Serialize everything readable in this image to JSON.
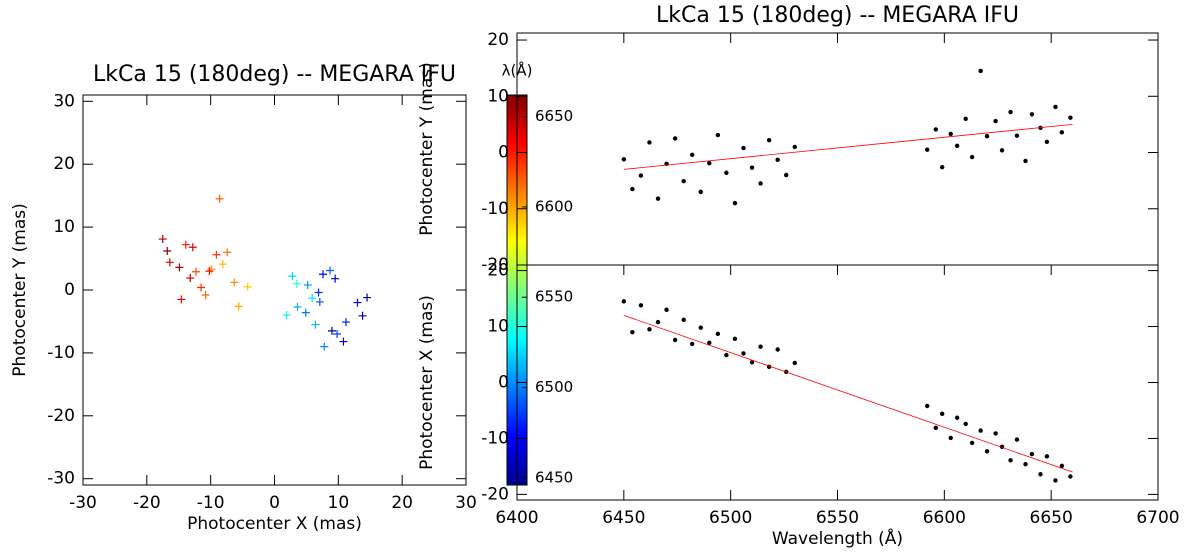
{
  "chart_data": [
    {
      "type": "scatter",
      "title": "LkCa 15 (180deg) -- MEGARA IFU",
      "xlabel": "Photocenter X (mas)",
      "ylabel": "Photocenter Y (mas)",
      "xlim": [
        -30,
        30
      ],
      "ylim": [
        -31,
        31
      ],
      "xticks": [
        -30,
        -20,
        -10,
        0,
        10,
        20,
        30
      ],
      "yticks": [
        -30,
        -20,
        -10,
        0,
        10,
        20,
        30
      ],
      "marker": "plus",
      "colormap": "jet",
      "colorbar": {
        "label": "λ(Å)",
        "lim": [
          6446,
          6662
        ],
        "ticks": [
          6450,
          6500,
          6550,
          6600,
          6650
        ]
      },
      "x": [
        14.5,
        9.0,
        13.8,
        9.5,
        10.8,
        13.0,
        7.6,
        11.2,
        6.9,
        9.8,
        7.1,
        8.7,
        4.9,
        7.8,
        5.2,
        3.6,
        6.4,
        2.8,
        5.9,
        1.9,
        3.5,
        -4.2,
        -8.1,
        -5.6,
        -9.9,
        -6.3,
        -7.4,
        -10.8,
        -8.6,
        -12.3,
        -9.1,
        -11.5,
        -13.9,
        -10.2,
        -14.6,
        -12.8,
        -16.4,
        -13.2,
        -17.5,
        -14.9,
        -16.8
      ],
      "values": [
        -1.2,
        -6.5,
        -4.1,
        1.8,
        -8.2,
        -2.0,
        2.5,
        -5.1,
        -0.4,
        -7.0,
        -1.9,
        3.1,
        -3.6,
        -9.0,
        0.8,
        -2.7,
        -5.5,
        2.2,
        -1.3,
        -4.0,
        1.0,
        0.5,
        4.1,
        -2.6,
        3.3,
        1.2,
        6.0,
        -0.8,
        14.5,
        2.9,
        5.6,
        0.4,
        7.2,
        3.0,
        -1.5,
        6.8,
        4.4,
        1.9,
        8.1,
        3.6,
        6.2
      ],
      "wavelength": [
        6450,
        6454,
        6458,
        6462,
        6466,
        6470,
        6474,
        6478,
        6482,
        6486,
        6490,
        6494,
        6498,
        6502,
        6506,
        6510,
        6514,
        6518,
        6522,
        6526,
        6530,
        6592,
        6596,
        6599,
        6603,
        6606,
        6610,
        6613,
        6617,
        6620,
        6624,
        6627,
        6631,
        6634,
        6638,
        6641,
        6645,
        6648,
        6652,
        6655,
        6659
      ]
    },
    {
      "type": "scatter",
      "title": "LkCa 15 (180deg) -- MEGARA IFU",
      "ylabel": "Photocenter Y (mas)",
      "xlim": [
        6400,
        6700
      ],
      "ylim": [
        -20,
        21.25
      ],
      "yticks": [
        -20,
        -10,
        0,
        10,
        20
      ],
      "series": [
        {
          "marker": "dot",
          "color": "#000000",
          "x": [
            6450,
            6454,
            6458,
            6462,
            6466,
            6470,
            6474,
            6478,
            6482,
            6486,
            6490,
            6494,
            6498,
            6502,
            6506,
            6510,
            6514,
            6518,
            6522,
            6526,
            6530,
            6592,
            6596,
            6599,
            6603,
            6606,
            6610,
            6613,
            6617,
            6620,
            6624,
            6627,
            6631,
            6634,
            6638,
            6641,
            6645,
            6648,
            6652,
            6655,
            6659
          ],
          "values": [
            -1.2,
            -6.5,
            -4.1,
            1.8,
            -8.2,
            -2.0,
            2.5,
            -5.1,
            -0.4,
            -7.0,
            -1.9,
            3.1,
            -3.6,
            -9.0,
            0.8,
            -2.7,
            -5.5,
            2.2,
            -1.3,
            -4.0,
            1.0,
            0.5,
            4.1,
            -2.6,
            3.3,
            1.2,
            6.0,
            -0.8,
            14.5,
            2.9,
            5.6,
            0.4,
            7.2,
            3.0,
            -1.5,
            6.8,
            4.4,
            1.9,
            8.1,
            3.6,
            6.2
          ]
        },
        {
          "marker": "line",
          "color": "#ff0000",
          "x": [
            6450,
            6660
          ],
          "values": [
            -3,
            5
          ]
        }
      ]
    },
    {
      "type": "scatter",
      "xlabel": "Wavelength (Å)",
      "ylabel": "Photocenter X (mas)",
      "xlim": [
        6400,
        6700
      ],
      "ylim": [
        -21,
        21
      ],
      "xticks": [
        6400,
        6450,
        6500,
        6550,
        6600,
        6650,
        6700
      ],
      "yticks": [
        -20,
        -10,
        0,
        10,
        20
      ],
      "series": [
        {
          "marker": "dot",
          "color": "#000000",
          "x": [
            6450,
            6454,
            6458,
            6462,
            6466,
            6470,
            6474,
            6478,
            6482,
            6486,
            6490,
            6494,
            6498,
            6502,
            6506,
            6510,
            6514,
            6518,
            6522,
            6526,
            6530,
            6592,
            6596,
            6599,
            6603,
            6606,
            6610,
            6613,
            6617,
            6620,
            6624,
            6627,
            6631,
            6634,
            6638,
            6641,
            6645,
            6648,
            6652,
            6655,
            6659
          ],
          "values": [
            14.5,
            9.0,
            13.8,
            9.5,
            10.8,
            13.0,
            7.6,
            11.2,
            6.9,
            9.8,
            7.1,
            8.7,
            4.9,
            7.8,
            5.2,
            3.6,
            6.4,
            2.8,
            5.9,
            1.9,
            3.5,
            -4.2,
            -8.1,
            -5.6,
            -9.9,
            -6.3,
            -7.4,
            -10.8,
            -8.6,
            -12.3,
            -9.1,
            -11.5,
            -13.9,
            -10.2,
            -14.6,
            -12.8,
            -16.4,
            -13.2,
            -17.5,
            -14.9,
            -16.8
          ]
        },
        {
          "marker": "line",
          "color": "#ff0000",
          "x": [
            6450,
            6660
          ],
          "values": [
            12,
            -16
          ]
        }
      ]
    }
  ]
}
